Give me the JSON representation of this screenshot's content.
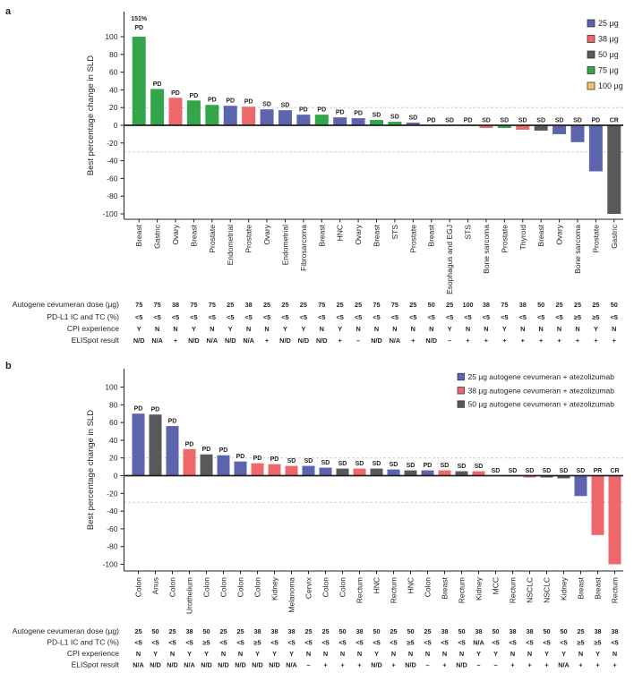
{
  "figure": {
    "panel_a_letter": "a",
    "panel_b_letter": "b"
  },
  "chart_data": [
    {
      "type": "bar",
      "panel": "a",
      "ylabel": "Best percentage change in SLD",
      "ylim": [
        -100,
        100
      ],
      "yticks": [
        100,
        80,
        60,
        40,
        20,
        0,
        -20,
        -40,
        -60,
        -80,
        -100
      ],
      "reference_lines": [
        20,
        -30
      ],
      "grid": "dashed-reference-only",
      "legend_position": "top-right",
      "legend": [
        {
          "label": "25 µg",
          "color": "#5c64ae"
        },
        {
          "label": "38 µg",
          "color": "#ee686b"
        },
        {
          "label": "50 µg",
          "color": "#58595b"
        },
        {
          "label": "75 µg",
          "color": "#33a64c"
        },
        {
          "label": "100 µg",
          "color": "#f2c06e"
        }
      ],
      "dose_colors": {
        "25": "#5c64ae",
        "38": "#ee686b",
        "50": "#58595b",
        "75": "#33a64c",
        "100": "#f2c06e"
      },
      "categories": [
        "Breast",
        "Gastric",
        "Ovary",
        "Breast",
        "Prostate",
        "Endometrial",
        "Prostate",
        "Ovary",
        "Endometrial",
        "Fibrosarcoma",
        "Breast",
        "HNC",
        "Ovary",
        "Breast",
        "STS",
        "Prostate",
        "Breast",
        "Esophagus and EGJ",
        "STS",
        "Bone sarcoma",
        "Prostate",
        "Thyroid",
        "Breast",
        "Ovary",
        "Bone sarcoma",
        "Prostate",
        "Gastric"
      ],
      "values": [
        151,
        41,
        31,
        28,
        23,
        22,
        21,
        18,
        17,
        12,
        12,
        9,
        8,
        6,
        4,
        3,
        0,
        0,
        -1,
        -3,
        -3,
        -5,
        -6,
        -10,
        -19,
        -52,
        -100
      ],
      "responses": [
        "PD",
        "PD",
        "PD",
        "PD",
        "PD",
        "PD",
        "PD",
        "SD",
        "SD",
        "PD",
        "PD",
        "PD",
        "PD",
        "SD",
        "SD",
        "SD",
        "PD",
        "SD",
        "PD",
        "SD",
        "SD",
        "SD",
        "SD",
        "SD",
        "SD",
        "PD",
        "CR"
      ],
      "cap_labels": [
        {
          "index": 0,
          "text": "151%"
        }
      ],
      "annotation_rows": [
        {
          "label": "Autogene cevumeran dose (µg)",
          "values": [
            "75",
            "75",
            "38",
            "75",
            "75",
            "25",
            "38",
            "25",
            "25",
            "25",
            "75",
            "25",
            "25",
            "75",
            "75",
            "25",
            "50",
            "25",
            "100",
            "38",
            "75",
            "38",
            "50",
            "25",
            "25",
            "25",
            "50"
          ]
        },
        {
          "label": "PD-L1 IC and TC (%)",
          "values": [
            "<5",
            "<5",
            "<5",
            "<5",
            "<5",
            "<5",
            "<5",
            "<5",
            "<5",
            "<5",
            "<5",
            "<5",
            "<5",
            "<5",
            "<5",
            "<5",
            "<5",
            "<5",
            "<5",
            "<5",
            "<5",
            "<5",
            "<5",
            "<5",
            "≥5",
            "≥5",
            "<5"
          ]
        },
        {
          "label": "CPI experience",
          "values": [
            "Y",
            "N",
            "N",
            "Y",
            "N",
            "Y",
            "N",
            "N",
            "Y",
            "Y",
            "N",
            "Y",
            "N",
            "N",
            "N",
            "N",
            "N",
            "Y",
            "N",
            "N",
            "Y",
            "N",
            "N",
            "N",
            "N",
            "Y",
            "N"
          ]
        },
        {
          "label": "ELISpot result",
          "values": [
            "N/D",
            "N/A",
            "+",
            "N/D",
            "N/A",
            "N/D",
            "N/A",
            "+",
            "N/D",
            "N/D",
            "N/D",
            "+",
            "–",
            "N/D",
            "N/A",
            "+",
            "N/D",
            "–",
            "+",
            "+",
            "+",
            "+",
            "+",
            "+",
            "+",
            "+",
            "+"
          ]
        }
      ]
    },
    {
      "type": "bar",
      "panel": "b",
      "ylabel": "Best percentage change in SLD",
      "ylim": [
        -100,
        100
      ],
      "yticks": [
        100,
        80,
        60,
        40,
        20,
        0,
        -20,
        -40,
        -60,
        -80,
        -100
      ],
      "reference_lines": [
        20,
        -30
      ],
      "grid": "dashed-reference-only",
      "legend_position": "top-right",
      "legend": [
        {
          "label": "25 µg autogene cevumeran + atezolizumab",
          "color": "#5c64ae"
        },
        {
          "label": "38 µg autogene cevumeran + atezolizumab",
          "color": "#ee686b"
        },
        {
          "label": "50 µg autogene cevumeran + atezolizumab",
          "color": "#58595b"
        }
      ],
      "dose_colors": {
        "25": "#5c64ae",
        "38": "#ee686b",
        "50": "#58595b"
      },
      "categories": [
        "Colon",
        "Anus",
        "Colon",
        "Urothelium",
        "Colon",
        "Colon",
        "Colon",
        "Colon",
        "Kidney",
        "Melanoma",
        "Cervix",
        "Colon",
        "Colon",
        "Rectum",
        "HNC",
        "Rectum",
        "HNC",
        "Colon",
        "Breast",
        "Rectum",
        "Kidney",
        "MCC",
        "Rectum",
        "NSCLC",
        "NSCLC",
        "Kidney",
        "Breast",
        "Breast",
        "Rectum"
      ],
      "values": [
        70,
        69,
        56,
        30,
        24,
        23,
        16,
        14,
        13,
        11,
        11,
        9,
        8,
        8,
        8,
        7,
        6,
        6,
        6,
        5,
        5,
        0,
        -1,
        -2,
        -2,
        -3,
        -23,
        -67,
        -100
      ],
      "responses": [
        "PD",
        "PD",
        "PD",
        "PD",
        "PD",
        "PD",
        "PD",
        "PD",
        "PD",
        "SD",
        "SD",
        "SD",
        "SD",
        "SD",
        "SD",
        "SD",
        "SD",
        "PD",
        "SD",
        "SD",
        "SD",
        "SD",
        "SD",
        "SD",
        "SD",
        "SD",
        "SD",
        "PR",
        "CR"
      ],
      "cap_labels": [],
      "annotation_rows": [
        {
          "label": "Autogene cevumeran dose (µg)",
          "values": [
            "25",
            "50",
            "25",
            "38",
            "50",
            "25",
            "25",
            "38",
            "38",
            "38",
            "25",
            "25",
            "50",
            "38",
            "50",
            "25",
            "50",
            "25",
            "38",
            "50",
            "38",
            "50",
            "38",
            "38",
            "50",
            "50",
            "25",
            "38",
            "38"
          ]
        },
        {
          "label": "PD-L1 IC and TC (%)",
          "values": [
            "<5",
            "<5",
            "<5",
            "<5",
            "≥5",
            "<5",
            "<5",
            "≥5",
            "<5",
            "<5",
            "<5",
            "<5",
            "<5",
            "<5",
            "<5",
            "<5",
            "≥5",
            "<5",
            "<5",
            "<5",
            "N/A",
            "<5",
            "<5",
            "<5",
            "<5",
            "<5",
            "≥5",
            "≥5",
            "<5"
          ]
        },
        {
          "label": "CPI experience",
          "values": [
            "N",
            "Y",
            "N",
            "Y",
            "Y",
            "N",
            "N",
            "Y",
            "Y",
            "Y",
            "N",
            "N",
            "N",
            "N",
            "Y",
            "N",
            "N",
            "N",
            "N",
            "N",
            "Y",
            "Y",
            "N",
            "N",
            "Y",
            "Y",
            "N",
            "Y",
            "N"
          ]
        },
        {
          "label": "ELISpot result",
          "values": [
            "N/A",
            "N/D",
            "N/D",
            "N/A",
            "N/D",
            "N/D",
            "N/D",
            "N/D",
            "N/D",
            "N/A",
            "–",
            "+",
            "+",
            "+",
            "N/D",
            "+",
            "N/D",
            "–",
            "+",
            "N/D",
            "–",
            "–",
            "+",
            "+",
            "+",
            "N/A",
            "+",
            "+",
            "+"
          ]
        }
      ]
    }
  ]
}
